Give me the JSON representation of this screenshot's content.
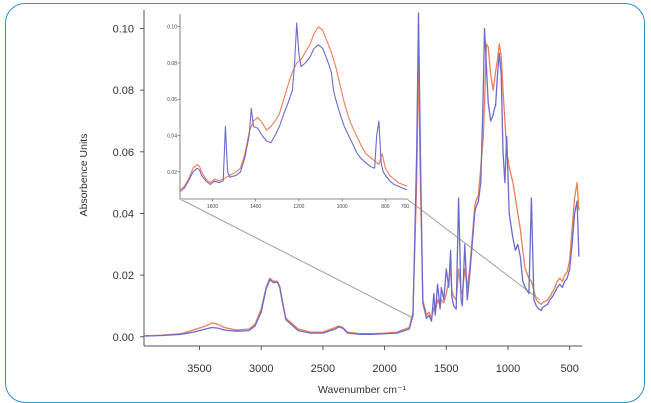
{
  "chart_data": [
    {
      "type": "line",
      "title": "",
      "xlabel": "Wavenumber cm⁻¹",
      "ylabel": "Absorbence Units",
      "xlim": [
        3950,
        400
      ],
      "ylim": [
        -0.003,
        0.106
      ],
      "x_reversed": true,
      "grid": false,
      "legend": "none",
      "x_ticks": [
        3500,
        3000,
        2500,
        2000,
        1500,
        1000,
        500
      ],
      "x_tick_labels": [
        "3500",
        "3000",
        "2500",
        "2000",
        "1500",
        "1000",
        "500"
      ],
      "y_ticks": [
        0.0,
        0.02,
        0.04,
        0.06,
        0.08,
        0.1
      ],
      "y_tick_labels": [
        "0.00",
        "0.02",
        "0.04",
        "0.06",
        "0.08",
        "0.10"
      ],
      "series": [
        {
          "color": "#ee7f55",
          "x": [
            3950,
            3800,
            3650,
            3550,
            3450,
            3400,
            3350,
            3300,
            3200,
            3100,
            3050,
            3000,
            2960,
            2930,
            2900,
            2870,
            2850,
            2830,
            2800,
            2700,
            2600,
            2500,
            2400,
            2370,
            2340,
            2300,
            2200,
            2100,
            2000,
            1900,
            1800,
            1770,
            1740,
            1725,
            1710,
            1690,
            1660,
            1640,
            1620,
            1600,
            1590,
            1570,
            1550,
            1540,
            1520,
            1500,
            1480,
            1465,
            1455,
            1440,
            1420,
            1400,
            1380,
            1370,
            1350,
            1330,
            1310,
            1290,
            1270,
            1260,
            1240,
            1220,
            1200,
            1190,
            1175,
            1160,
            1140,
            1120,
            1110,
            1100,
            1085,
            1070,
            1055,
            1040,
            1025,
            1010,
            990,
            960,
            940,
            920,
            900,
            880,
            860,
            830,
            810,
            790,
            770,
            750,
            730,
            720,
            700,
            680,
            660,
            640,
            620,
            600,
            580,
            560,
            540,
            520,
            500,
            480,
            460,
            440,
            425
          ],
          "y": [
            0.0003,
            0.0005,
            0.001,
            0.0022,
            0.0035,
            0.0045,
            0.004,
            0.003,
            0.0022,
            0.0025,
            0.004,
            0.009,
            0.016,
            0.019,
            0.018,
            0.018,
            0.0165,
            0.012,
            0.006,
            0.0025,
            0.0015,
            0.0015,
            0.003,
            0.0035,
            0.003,
            0.0015,
            0.001,
            0.001,
            0.0012,
            0.0015,
            0.003,
            0.008,
            0.05,
            0.09,
            0.05,
            0.012,
            0.007,
            0.008,
            0.006,
            0.0095,
            0.008,
            0.012,
            0.01,
            0.012,
            0.011,
            0.014,
            0.018,
            0.022,
            0.015,
            0.013,
            0.012,
            0.022,
            0.015,
            0.014,
            0.022,
            0.016,
            0.022,
            0.032,
            0.042,
            0.044,
            0.046,
            0.055,
            0.065,
            0.075,
            0.095,
            0.094,
            0.085,
            0.08,
            0.083,
            0.086,
            0.09,
            0.095,
            0.091,
            0.08,
            0.07,
            0.06,
            0.055,
            0.05,
            0.045,
            0.04,
            0.035,
            0.028,
            0.022,
            0.019,
            0.018,
            0.015,
            0.012,
            0.011,
            0.0105,
            0.011,
            0.0115,
            0.012,
            0.013,
            0.0145,
            0.016,
            0.018,
            0.019,
            0.018,
            0.02,
            0.021,
            0.025,
            0.035,
            0.045,
            0.05,
            0.041
          ]
        },
        {
          "color": "#6b6bcf",
          "x": [
            3950,
            3800,
            3650,
            3550,
            3450,
            3400,
            3350,
            3300,
            3200,
            3100,
            3050,
            3000,
            2960,
            2930,
            2900,
            2870,
            2850,
            2830,
            2800,
            2700,
            2600,
            2500,
            2400,
            2370,
            2340,
            2300,
            2200,
            2100,
            2000,
            1900,
            1800,
            1770,
            1740,
            1725,
            1710,
            1690,
            1660,
            1640,
            1620,
            1600,
            1590,
            1570,
            1550,
            1540,
            1520,
            1500,
            1480,
            1465,
            1455,
            1440,
            1420,
            1400,
            1380,
            1370,
            1350,
            1330,
            1310,
            1290,
            1270,
            1260,
            1240,
            1220,
            1200,
            1190,
            1175,
            1160,
            1140,
            1120,
            1110,
            1100,
            1085,
            1070,
            1055,
            1040,
            1025,
            1010,
            990,
            960,
            940,
            920,
            900,
            880,
            860,
            830,
            810,
            790,
            770,
            750,
            730,
            720,
            700,
            680,
            660,
            640,
            620,
            600,
            580,
            560,
            540,
            520,
            500,
            480,
            460,
            440,
            425
          ],
          "y": [
            0.0002,
            0.0004,
            0.0008,
            0.0015,
            0.0025,
            0.003,
            0.0028,
            0.0022,
            0.0018,
            0.002,
            0.0035,
            0.008,
            0.0155,
            0.0185,
            0.0175,
            0.0178,
            0.016,
            0.0115,
            0.0055,
            0.002,
            0.0012,
            0.0012,
            0.0025,
            0.0032,
            0.0028,
            0.0012,
            0.0008,
            0.0008,
            0.001,
            0.0012,
            0.0025,
            0.007,
            0.06,
            0.105,
            0.06,
            0.011,
            0.006,
            0.007,
            0.005,
            0.014,
            0.007,
            0.017,
            0.009,
            0.016,
            0.012,
            0.022,
            0.016,
            0.028,
            0.013,
            0.01,
            0.009,
            0.045,
            0.012,
            0.01,
            0.03,
            0.012,
            0.02,
            0.03,
            0.04,
            0.042,
            0.044,
            0.05,
            0.08,
            0.1,
            0.088,
            0.076,
            0.07,
            0.072,
            0.074,
            0.075,
            0.085,
            0.092,
            0.085,
            0.06,
            0.05,
            0.065,
            0.04,
            0.032,
            0.028,
            0.03,
            0.026,
            0.018,
            0.016,
            0.014,
            0.045,
            0.012,
            0.01,
            0.009,
            0.0085,
            0.0095,
            0.01,
            0.0105,
            0.012,
            0.013,
            0.0145,
            0.016,
            0.017,
            0.016,
            0.018,
            0.019,
            0.022,
            0.03,
            0.04,
            0.044,
            0.026
          ]
        }
      ]
    },
    {
      "type": "line",
      "title": "",
      "subtitle": "inset (magnified region)",
      "xlim": [
        1750,
        700
      ],
      "ylim": [
        0.005,
        0.107
      ],
      "x_reversed": true,
      "grid": false,
      "x_ticks": [
        1600,
        1400,
        1200,
        1000,
        800
      ],
      "x_tick_labels": [
        "1600",
        "1400",
        "1200",
        "1000",
        "800"
      ],
      "x_tick_labels_extra": [
        "700"
      ],
      "y_ticks": [
        0.02,
        0.04,
        0.06,
        0.08,
        0.1
      ],
      "y_tick_labels": [
        "0.02",
        "0.04",
        "0.06",
        "0.08",
        "0.10"
      ],
      "series": [
        {
          "color": "#ee7f55",
          "x": [
            1750,
            1730,
            1710,
            1690,
            1670,
            1660,
            1650,
            1630,
            1610,
            1590,
            1570,
            1550,
            1520,
            1490,
            1470,
            1450,
            1430,
            1410,
            1390,
            1370,
            1350,
            1330,
            1310,
            1290,
            1270,
            1250,
            1230,
            1210,
            1190,
            1170,
            1150,
            1130,
            1110,
            1090,
            1070,
            1050,
            1030,
            1010,
            990,
            970,
            950,
            930,
            910,
            890,
            870,
            850,
            830,
            815,
            800,
            780,
            760,
            740,
            720,
            700
          ],
          "y": [
            0.01,
            0.012,
            0.016,
            0.022,
            0.024,
            0.023,
            0.02,
            0.016,
            0.014,
            0.016,
            0.015,
            0.016,
            0.018,
            0.02,
            0.022,
            0.03,
            0.042,
            0.048,
            0.05,
            0.047,
            0.043,
            0.045,
            0.048,
            0.052,
            0.06,
            0.068,
            0.075,
            0.08,
            0.082,
            0.086,
            0.09,
            0.096,
            0.1,
            0.098,
            0.092,
            0.086,
            0.078,
            0.068,
            0.058,
            0.05,
            0.044,
            0.039,
            0.034,
            0.03,
            0.028,
            0.026,
            0.024,
            0.03,
            0.022,
            0.018,
            0.016,
            0.014,
            0.013,
            0.012
          ]
        },
        {
          "color": "#6b6bcf",
          "x": [
            1750,
            1730,
            1710,
            1690,
            1670,
            1660,
            1650,
            1630,
            1610,
            1590,
            1570,
            1550,
            1540,
            1530,
            1520,
            1490,
            1470,
            1450,
            1430,
            1420,
            1410,
            1390,
            1370,
            1350,
            1330,
            1310,
            1290,
            1270,
            1250,
            1230,
            1220,
            1210,
            1200,
            1190,
            1170,
            1150,
            1130,
            1110,
            1090,
            1070,
            1050,
            1040,
            1030,
            1010,
            990,
            970,
            950,
            930,
            910,
            890,
            870,
            850,
            840,
            830,
            820,
            810,
            800,
            780,
            760,
            740,
            720,
            700
          ],
          "y": [
            0.009,
            0.011,
            0.015,
            0.02,
            0.022,
            0.021,
            0.018,
            0.015,
            0.013,
            0.015,
            0.014,
            0.015,
            0.045,
            0.02,
            0.017,
            0.018,
            0.02,
            0.028,
            0.04,
            0.055,
            0.045,
            0.044,
            0.04,
            0.037,
            0.036,
            0.04,
            0.045,
            0.052,
            0.058,
            0.065,
            0.08,
            0.102,
            0.085,
            0.078,
            0.08,
            0.083,
            0.088,
            0.09,
            0.088,
            0.082,
            0.075,
            0.065,
            0.06,
            0.052,
            0.045,
            0.04,
            0.035,
            0.03,
            0.027,
            0.025,
            0.023,
            0.022,
            0.04,
            0.048,
            0.025,
            0.02,
            0.018,
            0.015,
            0.013,
            0.012,
            0.011,
            0.01
          ]
        }
      ]
    }
  ]
}
